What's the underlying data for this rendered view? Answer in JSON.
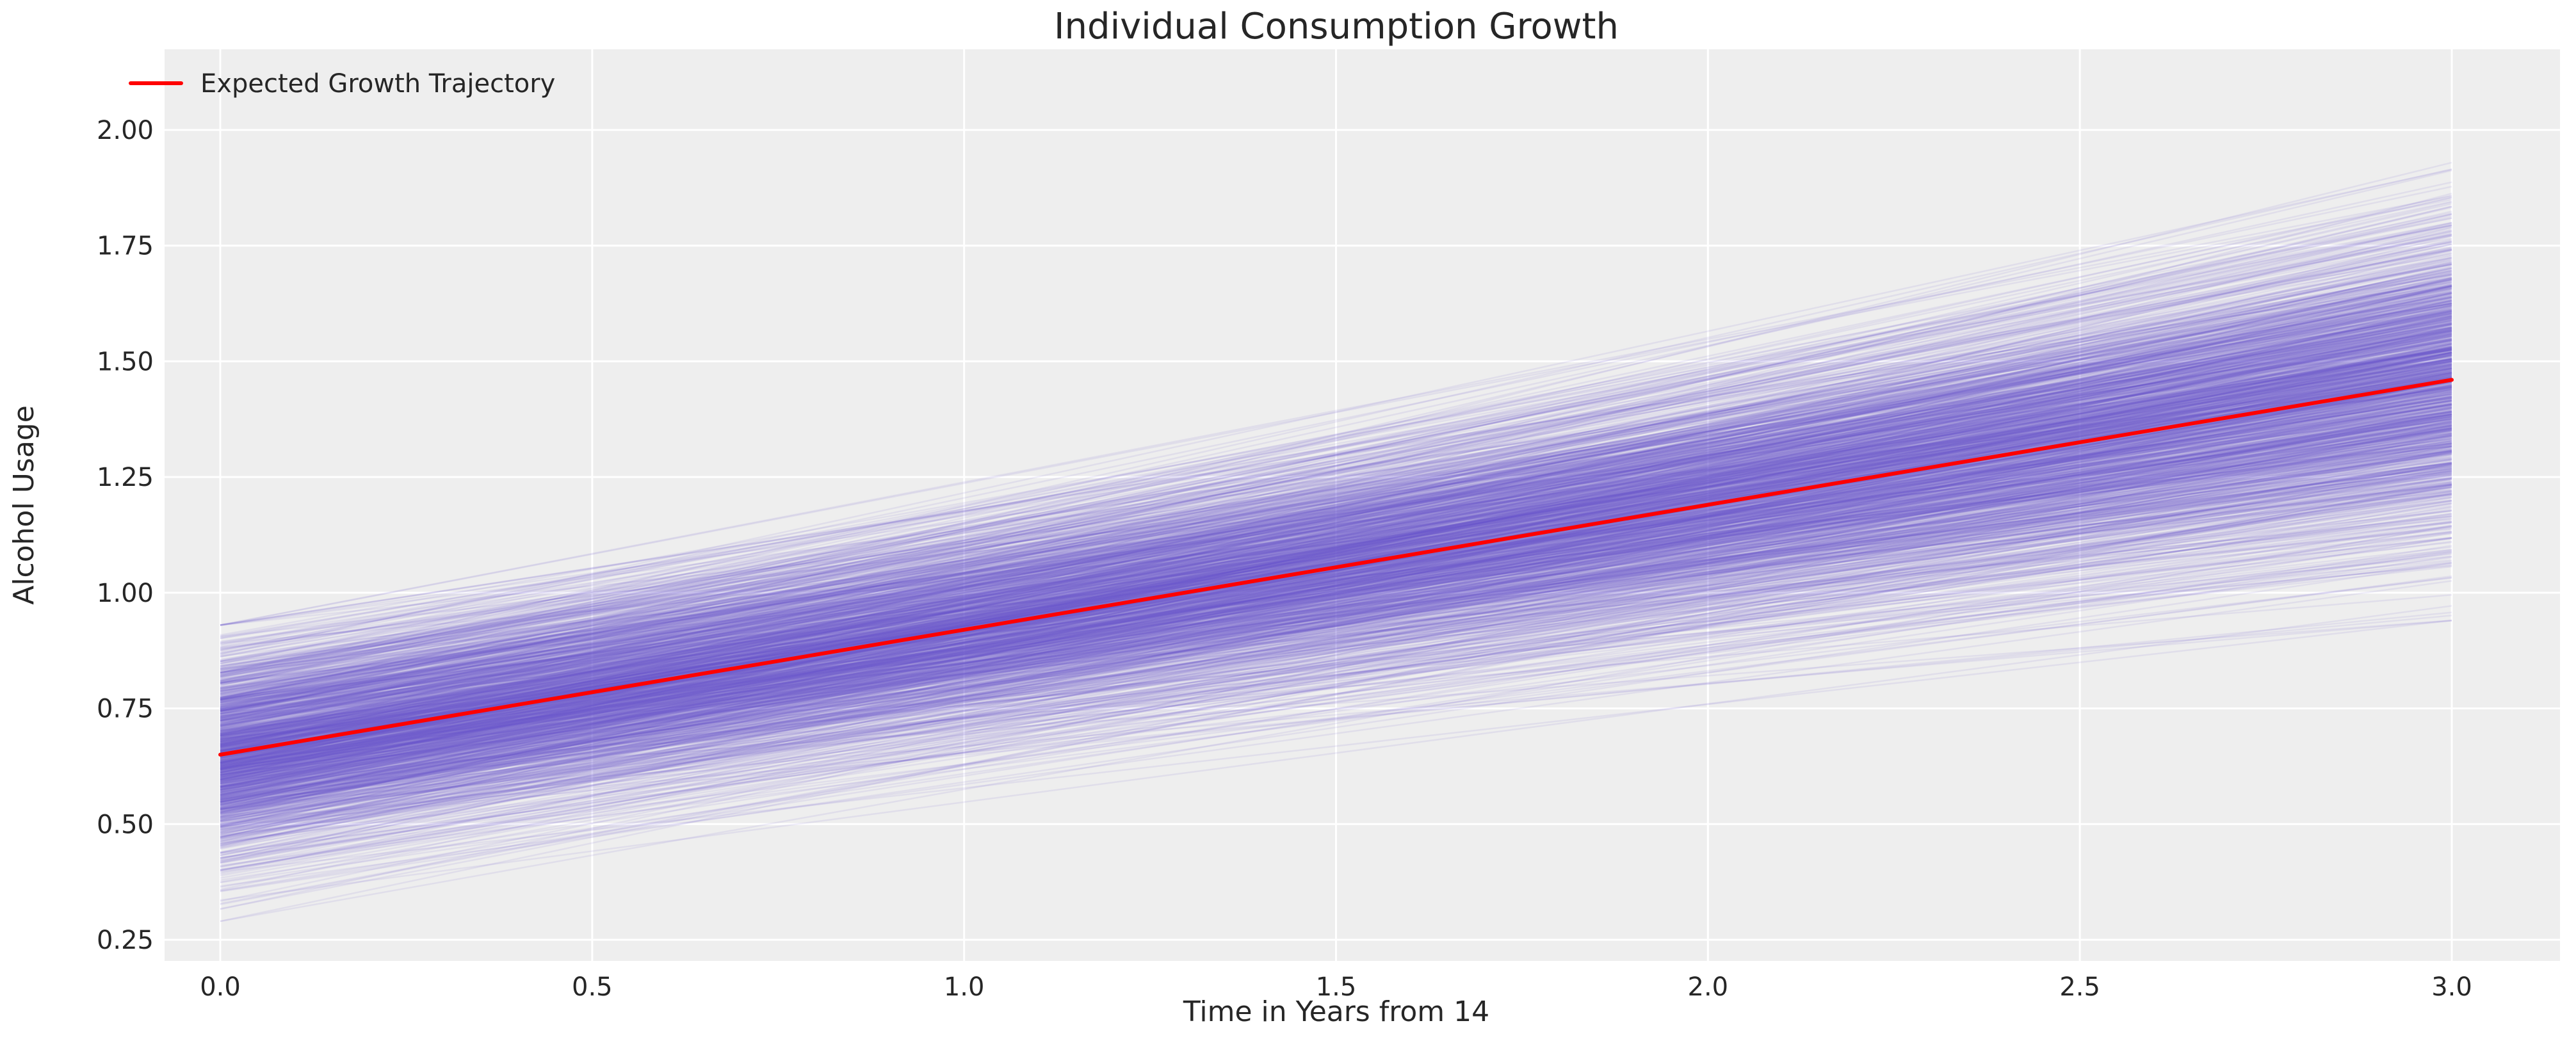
{
  "chart_data": {
    "type": "line",
    "title": "Individual Consumption Growth",
    "xlabel": "Time in Years from 14",
    "ylabel": "Alcohol Usage",
    "xlim": [
      -0.15,
      3.15
    ],
    "ylim": [
      0.2,
      2.18
    ],
    "xticks": [
      "0.0",
      "0.5",
      "1.0",
      "1.5",
      "2.0",
      "2.5",
      "3.0"
    ],
    "yticks": [
      "0.25",
      "0.50",
      "0.75",
      "1.00",
      "1.25",
      "1.50",
      "1.75",
      "2.00"
    ],
    "grid": true,
    "legend": {
      "placement": "top-left",
      "entries": [
        "Expected Growth Trajectory"
      ]
    },
    "series": [
      {
        "name": "Expected Growth Trajectory",
        "x": [
          0,
          3
        ],
        "y": [
          0.65,
          1.46
        ],
        "color": "#ff0000"
      }
    ],
    "individual_trajectories": {
      "x": [
        0,
        3
      ],
      "start_range": [
        0.29,
        0.93
      ],
      "end_range": [
        0.94,
        2.08
      ],
      "dense_start_range": [
        0.47,
        0.82
      ],
      "dense_end_range": [
        1.2,
        1.72
      ],
      "color": "#6a5acd"
    },
    "colors": {
      "background": "#eeeeee",
      "grid": "#ffffff"
    }
  }
}
